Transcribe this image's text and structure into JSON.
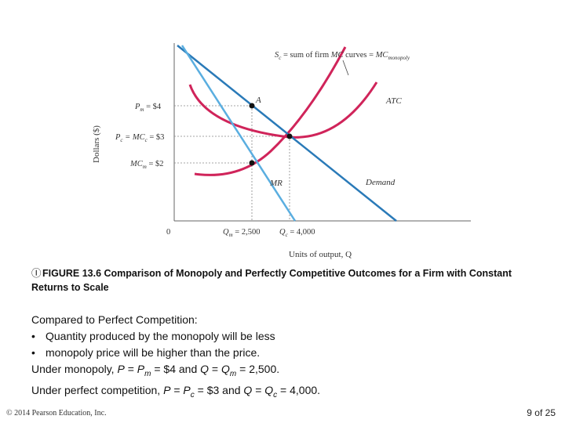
{
  "figure": {
    "labels": {
      "y_axis": "Dollars ($)",
      "x_axis": "Units of output, Q",
      "origin": "0",
      "pm": "P",
      "pm_sub": "m",
      "pm_val": " = $4",
      "pc": "P",
      "pc_sub": "c",
      "pc_mid": " = MC",
      "pc_sub2": "c",
      "pc_val": " = $3",
      "mcm": "MC",
      "mcm_sub": "m",
      "mcm_val": " = $2",
      "qm": "Q",
      "qm_sub": "m",
      "qm_val": " = 2,500",
      "qc": "Q",
      "qc_sub": "c",
      "qc_val": " = 4,000",
      "sc_a": "S",
      "sc_b": "c",
      "sc_c": " = sum of firm ",
      "sc_d": "MC",
      "sc_e": " curves = ",
      "sc_f": "MC",
      "sc_g": "monopoly",
      "point_a": "A",
      "atc": "ATC",
      "mr": "MR",
      "demand": "Demand"
    },
    "colors": {
      "demand": "#2a7ab8",
      "mr": "#5aaee0",
      "cost_curves": "#d0245a",
      "axis": "#666666",
      "guides": "#888888",
      "points": "#111111"
    }
  },
  "caption": {
    "mark": "Ⓘ",
    "text": "FIGURE 13.6  Comparison of Monopoly and Perfectly Competitive Outcomes for a Firm with Constant Returns to Scale"
  },
  "body": {
    "heading": "Compared to Perfect Competition:",
    "bullets": [
      "Quantity produced by the monopoly will be less",
      "monopoly price will be higher than the price."
    ],
    "bullet_mark": "•",
    "line_monopoly": {
      "lead": "Under monopoly, ",
      "p": "P",
      "eq1": " = ",
      "pm": "P",
      "pm_sub": "m",
      "mid": " = $4 and ",
      "q": "Q",
      "eq2": " = ",
      "qm": "Q",
      "qm_sub": "m",
      "end": " = 2,500."
    },
    "line_competition": {
      "lead": "Under perfect competition, ",
      "p": "P",
      "eq1": " = ",
      "pc": "P",
      "pc_sub": "c",
      "mid": " = $3 and ",
      "q": "Q",
      "eq2": " = ",
      "qc": "Q",
      "qc_sub": "c",
      "end": " = 4,000."
    }
  },
  "footer": {
    "copyright": "© 2014 Pearson Education, Inc.",
    "page": "9 of 25"
  }
}
